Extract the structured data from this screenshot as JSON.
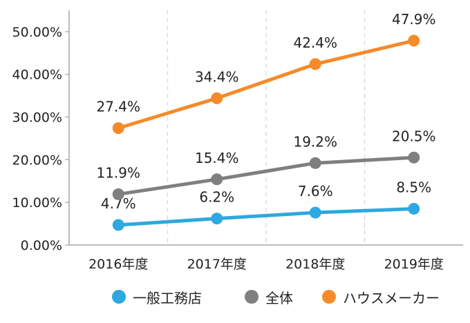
{
  "chart_data": {
    "type": "line",
    "title": "",
    "xlabel": "",
    "ylabel": "",
    "categories": [
      "2016年度",
      "2017年度",
      "2018年度",
      "2019年度"
    ],
    "ylim": [
      0,
      0.55
    ],
    "y_ticks": [
      "0.00%",
      "10.00%",
      "20.00%",
      "30.00%",
      "40.00%",
      "50.00%"
    ],
    "grid": "vertical dashed",
    "legend_position": "bottom",
    "series": [
      {
        "name": "一般工務店",
        "color": "#2EA8E0",
        "values": [
          4.7,
          6.2,
          7.6,
          8.5
        ],
        "labels": [
          "4.7%",
          "6.2%",
          "7.6%",
          "8.5%"
        ]
      },
      {
        "name": "全体",
        "color": "#7F7F7F",
        "values": [
          11.9,
          15.4,
          19.2,
          20.5
        ],
        "labels": [
          "11.9%",
          "15.4%",
          "19.2%",
          "20.5%"
        ]
      },
      {
        "name": "ハウスメーカー",
        "color": "#F58A2A",
        "values": [
          27.4,
          34.4,
          42.4,
          47.9
        ],
        "labels": [
          "27.4%",
          "34.4%",
          "42.4%",
          "47.9%"
        ]
      }
    ]
  }
}
